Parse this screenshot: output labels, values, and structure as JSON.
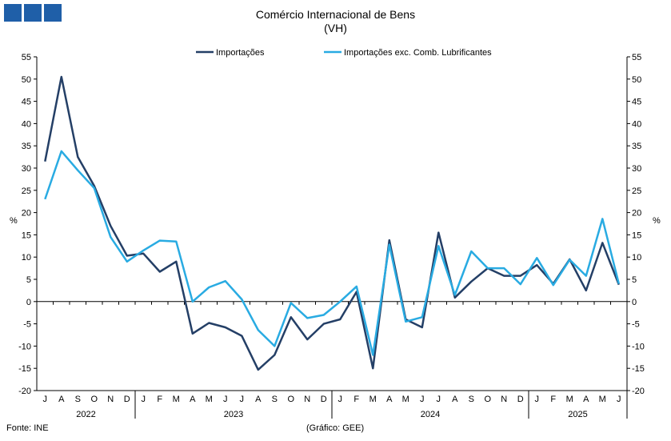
{
  "logo": {
    "icon": "logo-blocks-icon",
    "color": "#1f5fa8"
  },
  "header": {
    "title": "Comércio Internacional de Bens",
    "subtitle": "(VH)"
  },
  "footer": {
    "source": "Fonte: INE",
    "credit": "(Gráfico: GEE)"
  },
  "chart_data": {
    "type": "line",
    "title": "Comércio Internacional de Bens",
    "subtitle": "(VH)",
    "ylabel_left": "%",
    "ylabel_right": "%",
    "ylim": [
      -20,
      55
    ],
    "yticks": [
      -20,
      -15,
      -10,
      -5,
      0,
      5,
      10,
      15,
      20,
      25,
      30,
      35,
      40,
      45,
      50,
      55
    ],
    "grid": false,
    "legend_position": "top",
    "categories": [
      "J",
      "A",
      "S",
      "O",
      "N",
      "D",
      "J",
      "F",
      "M",
      "A",
      "M",
      "J",
      "J",
      "A",
      "S",
      "O",
      "N",
      "D",
      "J",
      "F",
      "M",
      "A",
      "M",
      "J",
      "J",
      "A",
      "S",
      "O",
      "N",
      "D",
      "J",
      "F",
      "M",
      "A",
      "M",
      "J"
    ],
    "year_groups": [
      {
        "label": "2022",
        "start": 0,
        "count": 6
      },
      {
        "label": "2023",
        "start": 6,
        "count": 12
      },
      {
        "label": "2024",
        "start": 18,
        "count": 12
      },
      {
        "label": "2025",
        "start": 30,
        "count": 6
      }
    ],
    "series": [
      {
        "name": "Importações",
        "color": "#243f66",
        "values": [
          31.5,
          50.5,
          32.5,
          26.0,
          17.0,
          10.3,
          10.8,
          6.7,
          9.0,
          -7.2,
          -4.8,
          -5.8,
          -7.7,
          -15.3,
          -12.0,
          -3.5,
          -8.5,
          -5.0,
          -4.0,
          2.2,
          -15.0,
          13.8,
          -4.0,
          -5.8,
          15.5,
          0.9,
          4.5,
          7.5,
          5.8,
          5.8,
          8.2,
          4.0,
          9.5,
          2.5,
          13.2,
          3.8
        ]
      },
      {
        "name": "Importações exc. Comb. Lubrificantes",
        "color": "#29abe2",
        "values": [
          23.0,
          33.8,
          29.5,
          25.5,
          14.5,
          9.0,
          11.5,
          13.7,
          13.5,
          0.0,
          3.2,
          4.6,
          0.5,
          -6.4,
          -10.0,
          -0.3,
          -3.7,
          -3.0,
          0.0,
          3.4,
          -12.0,
          12.8,
          -4.5,
          -3.5,
          12.5,
          1.5,
          11.3,
          7.5,
          7.5,
          3.9,
          9.8,
          3.7,
          9.4,
          5.8,
          18.6,
          4.0
        ]
      }
    ]
  }
}
